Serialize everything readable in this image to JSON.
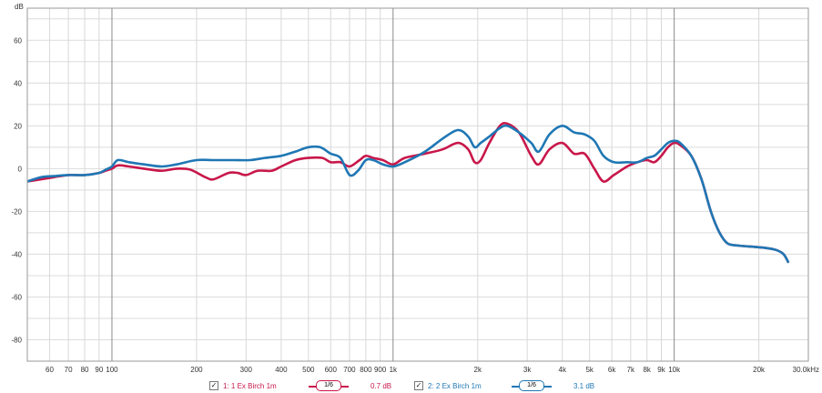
{
  "chart_data": {
    "type": "line",
    "ylabel": "dB",
    "ylim": [
      -90,
      75
    ],
    "y_ticks": [
      60,
      40,
      20,
      0,
      -20,
      -40,
      -60,
      -80
    ],
    "xlim": [
      50,
      30000
    ],
    "x_scale": "log",
    "x_ticks": [
      {
        "v": 60,
        "t": "60"
      },
      {
        "v": 70,
        "t": "70"
      },
      {
        "v": 80,
        "t": "80"
      },
      {
        "v": 90,
        "t": "90"
      },
      {
        "v": 100,
        "t": "100"
      },
      {
        "v": 200,
        "t": "200"
      },
      {
        "v": 300,
        "t": "300"
      },
      {
        "v": 400,
        "t": "400"
      },
      {
        "v": 500,
        "t": "500"
      },
      {
        "v": 600,
        "t": "600"
      },
      {
        "v": 700,
        "t": "700"
      },
      {
        "v": 800,
        "t": "800"
      },
      {
        "v": 900,
        "t": "900"
      },
      {
        "v": 1000,
        "t": "1k"
      },
      {
        "v": 2000,
        "t": "2k"
      },
      {
        "v": 3000,
        "t": "3k"
      },
      {
        "v": 4000,
        "t": "4k"
      },
      {
        "v": 5000,
        "t": "5k"
      },
      {
        "v": 6000,
        "t": "6k"
      },
      {
        "v": 7000,
        "t": "7k"
      },
      {
        "v": 8000,
        "t": "8k"
      },
      {
        "v": 9000,
        "t": "9k"
      },
      {
        "v": 10000,
        "t": "10k"
      },
      {
        "v": 20000,
        "t": "20k"
      },
      {
        "v": 30000,
        "t": "30.0kHz"
      }
    ],
    "grid": true,
    "series": [
      {
        "name": "1: 1 Ex Birch 1m",
        "color": "#c8174a",
        "points": [
          [
            50,
            -6
          ],
          [
            56,
            -5
          ],
          [
            62,
            -4
          ],
          [
            70,
            -3
          ],
          [
            80,
            -3
          ],
          [
            90,
            -2
          ],
          [
            95,
            -1
          ],
          [
            100,
            0
          ],
          [
            105,
            1.5
          ],
          [
            115,
            1
          ],
          [
            130,
            0
          ],
          [
            150,
            -1
          ],
          [
            170,
            0
          ],
          [
            190,
            -0.5
          ],
          [
            215,
            -4
          ],
          [
            230,
            -5
          ],
          [
            260,
            -2
          ],
          [
            280,
            -2
          ],
          [
            300,
            -3
          ],
          [
            330,
            -1
          ],
          [
            370,
            -1
          ],
          [
            400,
            1
          ],
          [
            450,
            4
          ],
          [
            500,
            5
          ],
          [
            560,
            5
          ],
          [
            600,
            3
          ],
          [
            650,
            3
          ],
          [
            700,
            1
          ],
          [
            760,
            4
          ],
          [
            800,
            6
          ],
          [
            850,
            5
          ],
          [
            920,
            4
          ],
          [
            1000,
            2
          ],
          [
            1100,
            5
          ],
          [
            1300,
            7
          ],
          [
            1500,
            9
          ],
          [
            1700,
            12
          ],
          [
            1850,
            9
          ],
          [
            1950,
            3
          ],
          [
            2050,
            4
          ],
          [
            2200,
            12
          ],
          [
            2400,
            20
          ],
          [
            2550,
            21
          ],
          [
            2800,
            17
          ],
          [
            3100,
            6
          ],
          [
            3300,
            2
          ],
          [
            3600,
            9
          ],
          [
            4000,
            12
          ],
          [
            4400,
            7
          ],
          [
            4800,
            7
          ],
          [
            5200,
            0
          ],
          [
            5600,
            -6
          ],
          [
            6100,
            -3
          ],
          [
            6800,
            1
          ],
          [
            7400,
            3
          ],
          [
            8000,
            4
          ],
          [
            8500,
            3
          ],
          [
            9000,
            6
          ],
          [
            9500,
            10
          ],
          [
            10000,
            12
          ],
          [
            10500,
            11
          ],
          [
            11500,
            6
          ],
          [
            12500,
            -5
          ],
          [
            13500,
            -20
          ],
          [
            14500,
            -30
          ],
          [
            15500,
            -35
          ],
          [
            17000,
            -36
          ],
          [
            19000,
            -36.5
          ],
          [
            21000,
            -37
          ],
          [
            23000,
            -38
          ],
          [
            24500,
            -40
          ],
          [
            25500,
            -44
          ]
        ]
      },
      {
        "name": "2: 2 Ex Birch 1m",
        "color": "#1f77b4",
        "points": [
          [
            50,
            -6
          ],
          [
            56,
            -4
          ],
          [
            62,
            -3.5
          ],
          [
            70,
            -3
          ],
          [
            80,
            -3
          ],
          [
            90,
            -2
          ],
          [
            95,
            -0.5
          ],
          [
            100,
            1
          ],
          [
            105,
            4
          ],
          [
            115,
            3
          ],
          [
            130,
            2
          ],
          [
            150,
            1
          ],
          [
            170,
            2
          ],
          [
            200,
            4
          ],
          [
            230,
            4
          ],
          [
            270,
            4
          ],
          [
            310,
            4
          ],
          [
            350,
            5
          ],
          [
            400,
            6
          ],
          [
            450,
            8
          ],
          [
            500,
            10
          ],
          [
            550,
            10
          ],
          [
            600,
            7
          ],
          [
            650,
            5
          ],
          [
            700,
            -3
          ],
          [
            750,
            -1
          ],
          [
            800,
            4
          ],
          [
            850,
            4
          ],
          [
            920,
            2
          ],
          [
            1000,
            1
          ],
          [
            1100,
            3
          ],
          [
            1300,
            8
          ],
          [
            1500,
            14
          ],
          [
            1700,
            18
          ],
          [
            1850,
            15
          ],
          [
            1950,
            10
          ],
          [
            2050,
            12
          ],
          [
            2200,
            15
          ],
          [
            2400,
            19
          ],
          [
            2550,
            20
          ],
          [
            2800,
            17
          ],
          [
            3100,
            12
          ],
          [
            3300,
            8
          ],
          [
            3600,
            16
          ],
          [
            4000,
            20
          ],
          [
            4400,
            17
          ],
          [
            4800,
            16
          ],
          [
            5200,
            13
          ],
          [
            5600,
            6
          ],
          [
            6100,
            3
          ],
          [
            6800,
            3
          ],
          [
            7400,
            3
          ],
          [
            8000,
            5
          ],
          [
            8500,
            6
          ],
          [
            9000,
            9
          ],
          [
            9500,
            12
          ],
          [
            10000,
            13
          ],
          [
            10500,
            12
          ],
          [
            11500,
            6
          ],
          [
            12500,
            -5
          ],
          [
            13500,
            -20
          ],
          [
            14500,
            -30
          ],
          [
            15500,
            -35
          ],
          [
            17000,
            -36
          ],
          [
            19000,
            -36.5
          ],
          [
            21000,
            -37
          ],
          [
            23000,
            -38
          ],
          [
            24500,
            -40
          ],
          [
            25500,
            -44
          ]
        ]
      }
    ]
  },
  "legend": {
    "items": [
      {
        "label": "1: 1 Ex Birch 1m",
        "smoothing": "1/6",
        "value": "0.7 dB",
        "color": "#c8174a",
        "checked": true
      },
      {
        "label": "2: 2 Ex Birch 1m",
        "smoothing": "1/6",
        "value": "3.1 dB",
        "color": "#1f77b4",
        "checked": true
      }
    ]
  }
}
